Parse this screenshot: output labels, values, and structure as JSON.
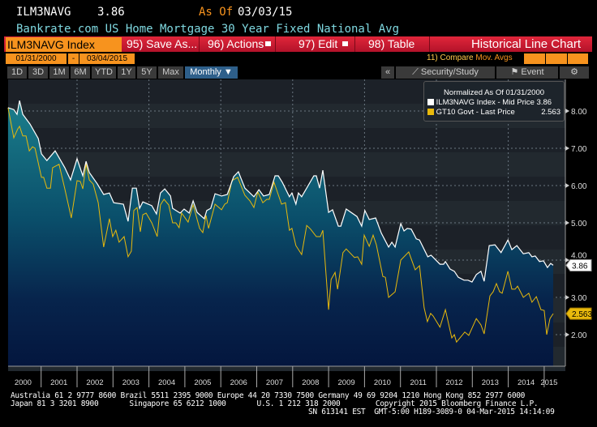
{
  "header": {
    "ticker": "ILM3NAVG",
    "last": "3.86",
    "as_of_label": "As Of",
    "as_of_date": "03/03/15",
    "description": "Bankrate.com US Home Mortgage 30 Year Fixed National Avg"
  },
  "toolbar": {
    "security": "ILM3NAVG Index",
    "save": "95) Save As...",
    "actions": "96) Actions",
    "edit": "97) Edit",
    "table": "98) Table",
    "chart_type": "Historical Line Chart"
  },
  "dates": {
    "start": "01/31/2000",
    "sep": "-",
    "end": "03/04/2015",
    "compare_prefix": "11) Compare",
    "compare_value": "Mov. Avgs"
  },
  "periods": [
    "1D",
    "3D",
    "1M",
    "6M",
    "YTD",
    "1Y",
    "5Y",
    "Max"
  ],
  "frequency": "Monthly ▼",
  "right_tools": {
    "collapse": "«",
    "security_study": "Security/Study",
    "event": "Event",
    "settings": "⚙"
  },
  "legend": {
    "title": "Normalized As Of 01/31/2000",
    "items": [
      {
        "label": "ILM3NAVG Index - Mid Price",
        "value": "3.86",
        "color": "#ffffff"
      },
      {
        "label": "GT10 Govt - Last Price",
        "value": "2.563",
        "color": "#e8b90c"
      }
    ]
  },
  "footer": {
    "line1": "Australia 61 2 9777 8600 Brazil 5511 2395 9000 Europe 44 20 7330 7500 Germany 49 69 9204 1210 Hong Kong 852 2977 6000",
    "line2": "Japan 81 3 3201 8900       Singapore 65 6212 1000       U.S. 1 212 318 2000        Copyright 2015 Bloomberg Finance L.P.",
    "line3": "SN 613141 EST  GMT-5:00 H189-3089-0 04-Mar-2015 14:14:09"
  },
  "chart_data": {
    "type": "line",
    "title": "Historical Line Chart",
    "xlim": [
      2000,
      2015.3
    ],
    "ylim": [
      1.3,
      8.8
    ],
    "yticks": [
      "2.00",
      "3.00",
      "4.00",
      "5.00",
      "6.00",
      "7.00",
      "8.00"
    ],
    "ytick_values": [
      2,
      3,
      4,
      5,
      6,
      7,
      8
    ],
    "xticks": [
      "2000",
      "2001",
      "2002",
      "2003",
      "2004",
      "2005",
      "2006",
      "2007",
      "2008",
      "2009",
      "2010",
      "2011",
      "2012",
      "2013",
      "2014",
      "2015"
    ],
    "grid": true,
    "legend": "top-right",
    "last_labels": [
      "3.86",
      "2.563"
    ],
    "series": [
      {
        "name": "ILM3NAVG Index - Mid Price",
        "color": "#ffffff",
        "points": [
          [
            2000.08,
            8.09
          ],
          [
            2000.24,
            8.04
          ],
          [
            2000.33,
            7.91
          ],
          [
            2000.4,
            8.28
          ],
          [
            2000.49,
            7.91
          ],
          [
            2000.69,
            7.65
          ],
          [
            2000.92,
            7.26
          ],
          [
            2001.01,
            6.85
          ],
          [
            2001.16,
            6.67
          ],
          [
            2001.39,
            6.93
          ],
          [
            2001.66,
            6.48
          ],
          [
            2001.82,
            6.15
          ],
          [
            2002.0,
            6.72
          ],
          [
            2002.16,
            6.26
          ],
          [
            2002.25,
            6.65
          ],
          [
            2002.34,
            6.35
          ],
          [
            2002.56,
            6.05
          ],
          [
            2002.74,
            5.76
          ],
          [
            2002.9,
            5.8
          ],
          [
            2003.02,
            5.54
          ],
          [
            2003.29,
            5.5
          ],
          [
            2003.42,
            5.04
          ],
          [
            2003.54,
            5.93
          ],
          [
            2003.65,
            5.93
          ],
          [
            2003.74,
            5.39
          ],
          [
            2003.83,
            5.56
          ],
          [
            2004.08,
            5.46
          ],
          [
            2004.21,
            5.24
          ],
          [
            2004.32,
            5.8
          ],
          [
            2004.44,
            5.91
          ],
          [
            2004.6,
            5.72
          ],
          [
            2004.66,
            5.39
          ],
          [
            2004.87,
            5.26
          ],
          [
            2004.98,
            5.37
          ],
          [
            2005.12,
            5.26
          ],
          [
            2005.23,
            5.59
          ],
          [
            2005.34,
            5.28
          ],
          [
            2005.54,
            5.11
          ],
          [
            2005.61,
            5.33
          ],
          [
            2005.72,
            5.39
          ],
          [
            2005.84,
            5.78
          ],
          [
            2006.02,
            5.72
          ],
          [
            2006.18,
            5.76
          ],
          [
            2006.36,
            6.24
          ],
          [
            2006.49,
            6.37
          ],
          [
            2006.67,
            5.93
          ],
          [
            2006.78,
            5.83
          ],
          [
            2006.92,
            5.7
          ],
          [
            2007.06,
            5.89
          ],
          [
            2007.19,
            5.72
          ],
          [
            2007.35,
            5.76
          ],
          [
            2007.51,
            6.26
          ],
          [
            2007.6,
            6.26
          ],
          [
            2007.71,
            6.09
          ],
          [
            2007.91,
            5.7
          ],
          [
            2007.98,
            5.8
          ],
          [
            2008.09,
            5.5
          ],
          [
            2008.16,
            5.8
          ],
          [
            2008.25,
            5.7
          ],
          [
            2008.59,
            6.26
          ],
          [
            2008.66,
            6.26
          ],
          [
            2008.75,
            5.93
          ],
          [
            2008.84,
            6.41
          ],
          [
            2009.0,
            5.28
          ],
          [
            2009.11,
            5.35
          ],
          [
            2009.27,
            4.91
          ],
          [
            2009.34,
            4.91
          ],
          [
            2009.49,
            5.37
          ],
          [
            2009.79,
            5.17
          ],
          [
            2009.92,
            4.91
          ],
          [
            2010.01,
            5.33
          ],
          [
            2010.13,
            5.09
          ],
          [
            2010.31,
            5.13
          ],
          [
            2010.47,
            4.72
          ],
          [
            2010.67,
            4.35
          ],
          [
            2010.76,
            4.48
          ],
          [
            2010.85,
            4.35
          ],
          [
            2011.01,
            4.98
          ],
          [
            2011.1,
            4.78
          ],
          [
            2011.19,
            4.85
          ],
          [
            2011.3,
            4.83
          ],
          [
            2011.44,
            4.57
          ],
          [
            2011.53,
            4.54
          ],
          [
            2011.76,
            4.09
          ],
          [
            2011.85,
            4.13
          ],
          [
            2012.1,
            3.89
          ],
          [
            2012.2,
            3.89
          ],
          [
            2012.25,
            3.96
          ],
          [
            2012.38,
            3.76
          ],
          [
            2012.5,
            3.7
          ],
          [
            2012.61,
            3.54
          ],
          [
            2012.77,
            3.46
          ],
          [
            2012.88,
            3.46
          ],
          [
            2012.99,
            3.41
          ],
          [
            2013.11,
            3.61
          ],
          [
            2013.24,
            3.7
          ],
          [
            2013.33,
            3.43
          ],
          [
            2013.47,
            4.39
          ],
          [
            2013.63,
            4.41
          ],
          [
            2013.8,
            4.2
          ],
          [
            2013.99,
            4.54
          ],
          [
            2014.1,
            4.28
          ],
          [
            2014.24,
            4.39
          ],
          [
            2014.42,
            4.17
          ],
          [
            2014.57,
            4.2
          ],
          [
            2014.66,
            4.09
          ],
          [
            2014.75,
            4.11
          ],
          [
            2014.87,
            3.96
          ],
          [
            2014.98,
            3.98
          ],
          [
            2015.09,
            3.8
          ],
          [
            2015.18,
            3.91
          ],
          [
            2015.25,
            3.86
          ]
        ]
      },
      {
        "name": "GT10 Govt - Last Price",
        "color": "#e8b90c",
        "points": [
          [
            2000.08,
            8.09
          ],
          [
            2000.24,
            7.28
          ],
          [
            2000.35,
            7.52
          ],
          [
            2000.4,
            7.59
          ],
          [
            2000.49,
            7.33
          ],
          [
            2000.58,
            7.33
          ],
          [
            2000.67,
            6.93
          ],
          [
            2000.76,
            7.04
          ],
          [
            2000.83,
            7.0
          ],
          [
            2001.01,
            6.22
          ],
          [
            2001.07,
            6.22
          ],
          [
            2001.16,
            5.93
          ],
          [
            2001.26,
            5.93
          ],
          [
            2001.32,
            6.48
          ],
          [
            2001.5,
            6.57
          ],
          [
            2001.66,
            5.91
          ],
          [
            2001.84,
            5.13
          ],
          [
            2002.0,
            6.13
          ],
          [
            2002.09,
            6.11
          ],
          [
            2002.16,
            5.91
          ],
          [
            2002.25,
            6.59
          ],
          [
            2002.34,
            6.15
          ],
          [
            2002.45,
            6.04
          ],
          [
            2002.59,
            5.54
          ],
          [
            2002.74,
            4.35
          ],
          [
            2002.9,
            5.11
          ],
          [
            2002.99,
            4.63
          ],
          [
            2003.08,
            4.8
          ],
          [
            2003.17,
            4.48
          ],
          [
            2003.31,
            4.63
          ],
          [
            2003.42,
            4.09
          ],
          [
            2003.51,
            4.24
          ],
          [
            2003.58,
            5.33
          ],
          [
            2003.67,
            5.41
          ],
          [
            2003.76,
            4.76
          ],
          [
            2003.83,
            5.22
          ],
          [
            2003.92,
            5.26
          ],
          [
            2004.08,
            5.0
          ],
          [
            2004.23,
            4.63
          ],
          [
            2004.32,
            5.48
          ],
          [
            2004.42,
            5.63
          ],
          [
            2004.55,
            5.48
          ],
          [
            2004.66,
            5.0
          ],
          [
            2004.75,
            5.0
          ],
          [
            2004.84,
            4.87
          ],
          [
            2004.91,
            5.26
          ],
          [
            2005.09,
            5.02
          ],
          [
            2005.23,
            5.48
          ],
          [
            2005.41,
            4.85
          ],
          [
            2005.5,
            4.74
          ],
          [
            2005.59,
            5.2
          ],
          [
            2005.66,
            4.85
          ],
          [
            2005.84,
            5.5
          ],
          [
            2006.02,
            5.35
          ],
          [
            2006.11,
            5.5
          ],
          [
            2006.18,
            5.54
          ],
          [
            2006.31,
            6.13
          ],
          [
            2006.47,
            6.22
          ],
          [
            2006.67,
            5.74
          ],
          [
            2006.81,
            5.59
          ],
          [
            2006.92,
            5.41
          ],
          [
            2007.03,
            5.83
          ],
          [
            2007.17,
            5.54
          ],
          [
            2007.28,
            5.63
          ],
          [
            2007.35,
            5.63
          ],
          [
            2007.48,
            6.09
          ],
          [
            2007.69,
            5.5
          ],
          [
            2007.8,
            5.54
          ],
          [
            2007.91,
            4.8
          ],
          [
            2007.98,
            4.85
          ],
          [
            2008.09,
            4.39
          ],
          [
            2008.25,
            4.15
          ],
          [
            2008.39,
            4.93
          ],
          [
            2008.5,
            4.83
          ],
          [
            2008.66,
            4.63
          ],
          [
            2008.77,
            4.63
          ],
          [
            2008.84,
            4.8
          ],
          [
            2009.0,
            2.67
          ],
          [
            2009.07,
            3.48
          ],
          [
            2009.18,
            3.67
          ],
          [
            2009.25,
            3.22
          ],
          [
            2009.4,
            4.2
          ],
          [
            2009.49,
            4.3
          ],
          [
            2009.72,
            4.07
          ],
          [
            2009.81,
            4.09
          ],
          [
            2009.92,
            3.89
          ],
          [
            2009.99,
            4.67
          ],
          [
            2010.13,
            4.37
          ],
          [
            2010.24,
            4.67
          ],
          [
            2010.33,
            4.41
          ],
          [
            2010.51,
            3.56
          ],
          [
            2010.58,
            3.54
          ],
          [
            2010.67,
            3.0
          ],
          [
            2010.85,
            3.15
          ],
          [
            2011.01,
            4.0
          ],
          [
            2011.23,
            4.22
          ],
          [
            2011.41,
            3.74
          ],
          [
            2011.53,
            3.85
          ],
          [
            2011.66,
            2.72
          ],
          [
            2011.75,
            2.35
          ],
          [
            2011.84,
            2.57
          ],
          [
            2011.91,
            2.5
          ],
          [
            2012.1,
            2.2
          ],
          [
            2012.25,
            2.67
          ],
          [
            2012.43,
            1.91
          ],
          [
            2012.5,
            2.0
          ],
          [
            2012.56,
            1.8
          ],
          [
            2012.79,
            2.07
          ],
          [
            2012.9,
            1.98
          ],
          [
            2013.11,
            2.43
          ],
          [
            2013.24,
            2.26
          ],
          [
            2013.33,
            2.02
          ],
          [
            2013.49,
            3.04
          ],
          [
            2013.58,
            3.15
          ],
          [
            2013.67,
            3.37
          ],
          [
            2013.76,
            3.15
          ],
          [
            2013.83,
            3.11
          ],
          [
            2013.99,
            3.7
          ],
          [
            2014.1,
            3.22
          ],
          [
            2014.19,
            3.22
          ],
          [
            2014.26,
            3.3
          ],
          [
            2014.42,
            3.0
          ],
          [
            2014.57,
            3.11
          ],
          [
            2014.66,
            2.87
          ],
          [
            2014.78,
            3.02
          ],
          [
            2014.91,
            2.67
          ],
          [
            2015.0,
            2.65
          ],
          [
            2015.07,
            2.0
          ],
          [
            2015.16,
            2.43
          ],
          [
            2015.25,
            2.563
          ]
        ]
      }
    ]
  }
}
